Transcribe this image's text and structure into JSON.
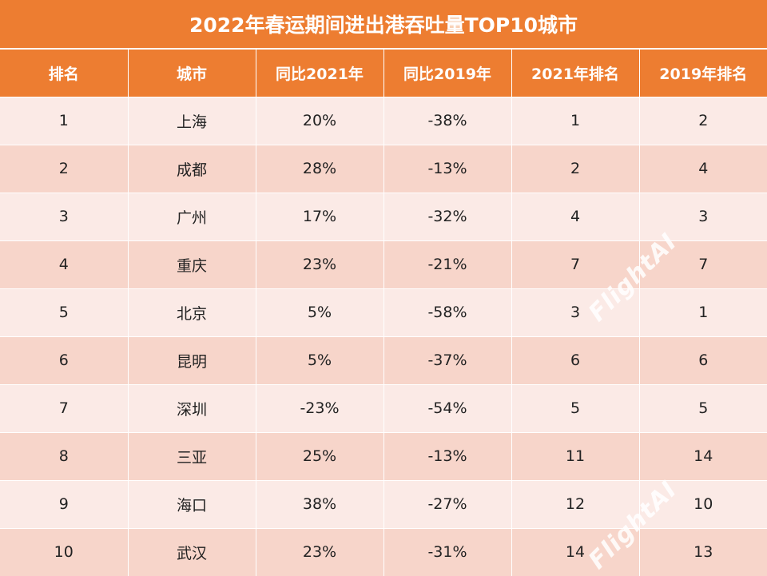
{
  "chart_data": {
    "type": "table",
    "title": "2022年春运期间进出港吞吐量TOP10城市",
    "columns": [
      "排名",
      "城市",
      "同比2021年",
      "同比2019年",
      "2021年排名",
      "2019年排名"
    ],
    "rows": [
      [
        "1",
        "上海",
        "20%",
        "-38%",
        "1",
        "2"
      ],
      [
        "2",
        "成都",
        "28%",
        "-13%",
        "2",
        "4"
      ],
      [
        "3",
        "广州",
        "17%",
        "-32%",
        "4",
        "3"
      ],
      [
        "4",
        "重庆",
        "23%",
        "-21%",
        "7",
        "7"
      ],
      [
        "5",
        "北京",
        "5%",
        "-58%",
        "3",
        "1"
      ],
      [
        "6",
        "昆明",
        "5%",
        "-37%",
        "6",
        "6"
      ],
      [
        "7",
        "深圳",
        "-23%",
        "-54%",
        "5",
        "5"
      ],
      [
        "8",
        "三亚",
        "25%",
        "-13%",
        "11",
        "14"
      ],
      [
        "9",
        "海口",
        "38%",
        "-27%",
        "12",
        "10"
      ],
      [
        "10",
        "武汉",
        "23%",
        "-31%",
        "14",
        "13"
      ]
    ]
  },
  "watermark": "FlightAI",
  "colors": {
    "header_bg": "#ED7D31",
    "row_light": "#FBEAE6",
    "row_dark": "#F7D5CA",
    "header_text": "#FFFFFF"
  }
}
